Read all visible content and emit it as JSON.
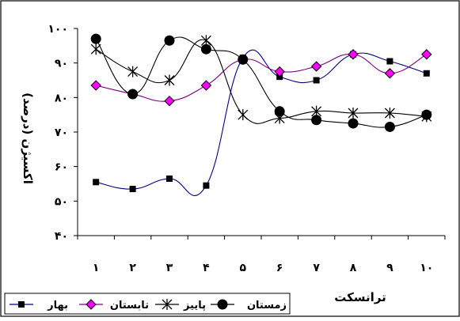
{
  "chart_data": {
    "type": "line",
    "xlabel": "ترانسکت",
    "ylabel": "اکسیژن (درصد)",
    "ylim": [
      40,
      100
    ],
    "y_ticks": [
      "۴۰",
      "۵۰",
      "۶۰",
      "۷۰",
      "۸۰",
      "۹۰",
      "۱۰۰"
    ],
    "y_tick_values": [
      40,
      50,
      60,
      70,
      80,
      90,
      100
    ],
    "x": [
      1,
      2,
      3,
      4,
      5,
      6,
      7,
      8,
      9,
      10
    ],
    "x_ticks": [
      "۱",
      "۲",
      "۳",
      "۴",
      "۵",
      "۶",
      "۷",
      "۸",
      "۹",
      "۱۰"
    ],
    "grid": false,
    "legend_position": "bottom",
    "series": [
      {
        "name": "بهار",
        "marker": "square",
        "color": "#000080",
        "marker_color": "#000000",
        "values": [
          55.5,
          53.5,
          56.5,
          54.5,
          91.5,
          86,
          85,
          92.5,
          90.5,
          87
        ]
      },
      {
        "name": "تابستان",
        "marker": "diamond",
        "color": "#800080",
        "marker_color": "#ff00ff",
        "values": [
          83.5,
          81,
          79,
          83.5,
          91,
          87.5,
          89,
          92.5,
          87,
          92.5
        ]
      },
      {
        "name": "پاییز",
        "marker": "asterisk",
        "color": "#000000",
        "marker_color": "#000000",
        "values": [
          94,
          87.5,
          85,
          96.5,
          75,
          74,
          76,
          75.5,
          75.5,
          74.5
        ]
      },
      {
        "name": "زمستان",
        "marker": "circle",
        "color": "#000000",
        "marker_color": "#000000",
        "values": [
          97,
          81,
          96.5,
          94,
          91,
          76,
          73.5,
          72.5,
          71.5,
          75
        ]
      }
    ]
  }
}
